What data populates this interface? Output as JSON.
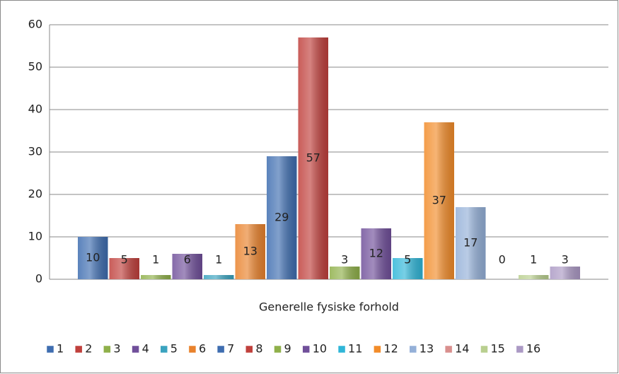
{
  "chart_data": {
    "type": "bar",
    "categories": [
      "Generelle fysiske forhold"
    ],
    "series": [
      {
        "name": "1",
        "color": "#3e6db0",
        "values": [
          10
        ]
      },
      {
        "name": "2",
        "color": "#c0403c",
        "values": [
          5
        ]
      },
      {
        "name": "3",
        "color": "#8fb04a",
        "values": [
          1
        ]
      },
      {
        "name": "4",
        "color": "#704f9a",
        "values": [
          6
        ]
      },
      {
        "name": "5",
        "color": "#3aa3bf",
        "values": [
          1
        ]
      },
      {
        "name": "6",
        "color": "#e9822c",
        "values": [
          13
        ]
      },
      {
        "name": "7",
        "color": "#3e6db0",
        "values": [
          29
        ]
      },
      {
        "name": "8",
        "color": "#c0403c",
        "values": [
          57
        ]
      },
      {
        "name": "9",
        "color": "#8fb04a",
        "values": [
          3
        ]
      },
      {
        "name": "10",
        "color": "#704f9a",
        "values": [
          12
        ]
      },
      {
        "name": "11",
        "color": "#2fb6d8",
        "values": [
          5
        ]
      },
      {
        "name": "12",
        "color": "#f28c2a",
        "values": [
          37
        ]
      },
      {
        "name": "13",
        "color": "#94b0d8",
        "values": [
          17
        ]
      },
      {
        "name": "14",
        "color": "#d98f8d",
        "values": [
          0
        ]
      },
      {
        "name": "15",
        "color": "#b9cf8f",
        "values": [
          1
        ]
      },
      {
        "name": "16",
        "color": "#ab99c4",
        "values": [
          3
        ]
      }
    ],
    "ylim": [
      0,
      60
    ],
    "yticks": [
      0,
      10,
      20,
      30,
      40,
      50,
      60
    ],
    "grid": true,
    "legend": "bottom"
  }
}
